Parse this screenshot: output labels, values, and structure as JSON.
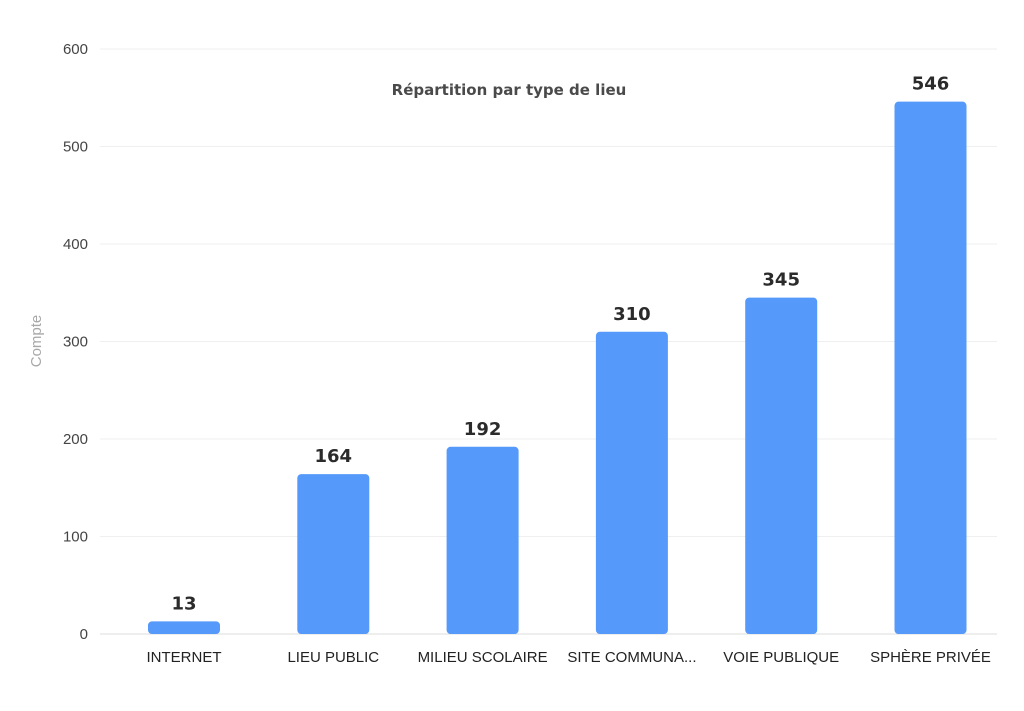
{
  "chart_data": {
    "type": "bar",
    "title": "Répartition par type de lieu",
    "xlabel": "",
    "ylabel": "Compte",
    "categories": [
      "INTERNET",
      "LIEU PUBLIC",
      "MILIEU SCOLAIRE",
      "SITE COMMUNA...",
      "VOIE PUBLIQUE",
      "SPHÈRE PRIVÉE"
    ],
    "values": [
      13,
      164,
      192,
      310,
      345,
      546
    ],
    "ylim": [
      0,
      600
    ],
    "yticks": [
      0,
      100,
      200,
      300,
      400,
      500,
      600
    ],
    "grid": true,
    "legend": "none",
    "bar_color": "#5599fa"
  }
}
